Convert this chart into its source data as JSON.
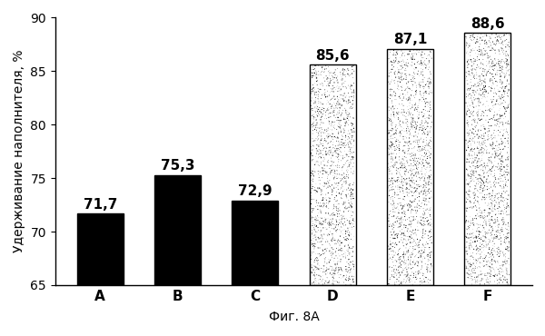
{
  "categories": [
    "A",
    "B",
    "C",
    "D",
    "E",
    "F"
  ],
  "values": [
    71.7,
    75.3,
    72.9,
    85.6,
    87.1,
    88.6
  ],
  "ylabel": "Удерживание наполнителя, %",
  "xlabel": "Фиг. 8А",
  "ylim": [
    65,
    90
  ],
  "yticks": [
    65,
    70,
    75,
    80,
    85,
    90
  ],
  "label_fontsize": 10,
  "tick_fontsize": 10,
  "xlabel_fontsize": 10,
  "value_fontsize": 11,
  "background_color": "#ffffff",
  "bar_width": 0.6,
  "stipple_density": 0.18,
  "stipple_seed": 42
}
